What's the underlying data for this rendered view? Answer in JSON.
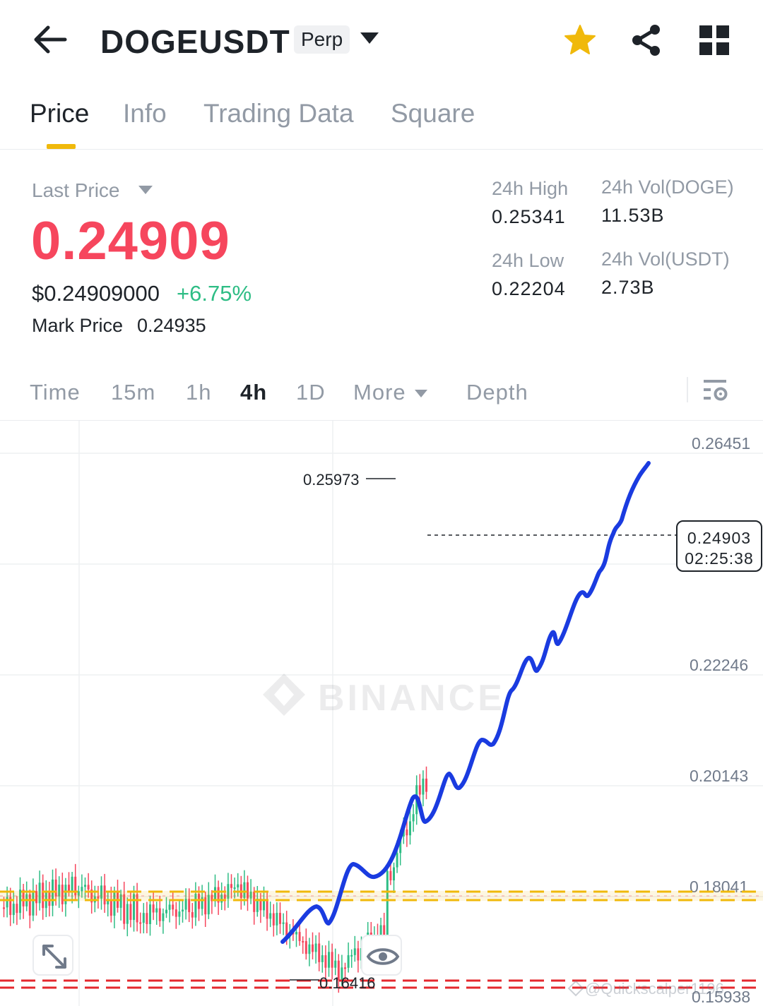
{
  "header": {
    "symbol": "DOGEUSDT",
    "badge": "Perp",
    "icons": [
      "back-arrow-icon",
      "dropdown-caret-icon",
      "star-icon",
      "share-icon",
      "grid-icon"
    ],
    "star_color": "#f0b90b"
  },
  "tabs": [
    {
      "label": "Price",
      "active": true
    },
    {
      "label": "Info",
      "active": false
    },
    {
      "label": "Trading Data",
      "active": false
    },
    {
      "label": "Square",
      "active": false
    }
  ],
  "stats": {
    "last_price_label": "Last Price",
    "last_price": "0.24909",
    "usd_price": "$0.24909000",
    "change": "+6.75%",
    "mark_price_label": "Mark Price",
    "mark_price": "0.24935",
    "high_label": "24h High",
    "high": "0.25341",
    "low_label": "24h Low",
    "low": "0.22204",
    "vol_base_label": "24h Vol(DOGE)",
    "vol_base": "11.53B",
    "vol_quote_label": "24h Vol(USDT)",
    "vol_quote": "2.73B"
  },
  "intervals": {
    "items": [
      "Time",
      "15m",
      "1h",
      "4h",
      "1D",
      "More",
      "Depth"
    ],
    "active": "4h"
  },
  "chart": {
    "y_labels": [
      "0.26451",
      "0.22246",
      "0.20143",
      "0.18041",
      "0.15938"
    ],
    "high_marker": "0.25973",
    "low_marker": "0.16416",
    "current_price": "0.24903",
    "countdown": "02:25:38",
    "watermark": "BINANCE",
    "credit": "@Quickscalper1196"
  },
  "colors": {
    "up": "#2ebd85",
    "down": "#f6465d",
    "accent": "#f0b90b",
    "drawn_line": "#1a3be0"
  }
}
